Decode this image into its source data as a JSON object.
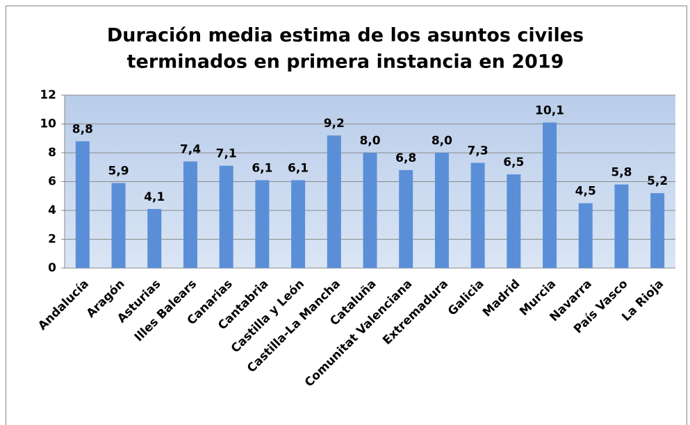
{
  "chart_data": {
    "type": "bar",
    "title": [
      "Duración media estima de los asuntos civiles",
      "terminados en primera instancia en 2019"
    ],
    "categories": [
      "Andalucía",
      "Aragón",
      "Asturias",
      "Illes Balears",
      "Canarias",
      "Cantabria",
      "Castilla y León",
      "Castilla-La Mancha",
      "Cataluña",
      "Comunitat Valenciana",
      "Extremadura",
      "Galicia",
      "Madrid",
      "Murcia",
      "Navarra",
      "País Vasco",
      "La Rioja"
    ],
    "values": [
      8.8,
      5.9,
      4.1,
      7.4,
      7.1,
      6.1,
      6.1,
      9.2,
      8.0,
      6.8,
      8.0,
      7.3,
      6.5,
      10.1,
      4.5,
      5.8,
      5.2
    ],
    "value_labels": [
      "8,8",
      "5,9",
      "4,1",
      "7,4",
      "7,1",
      "6,1",
      "6,1",
      "9,2",
      "8,0",
      "6,8",
      "8,0",
      "7,3",
      "6,5",
      "10,1",
      "4,5",
      "5,8",
      "5,2"
    ],
    "color": "#5a8fd8",
    "ylim": [
      0,
      12
    ],
    "yticks": [
      0,
      2,
      4,
      6,
      8,
      10,
      12
    ],
    "grid": true
  }
}
